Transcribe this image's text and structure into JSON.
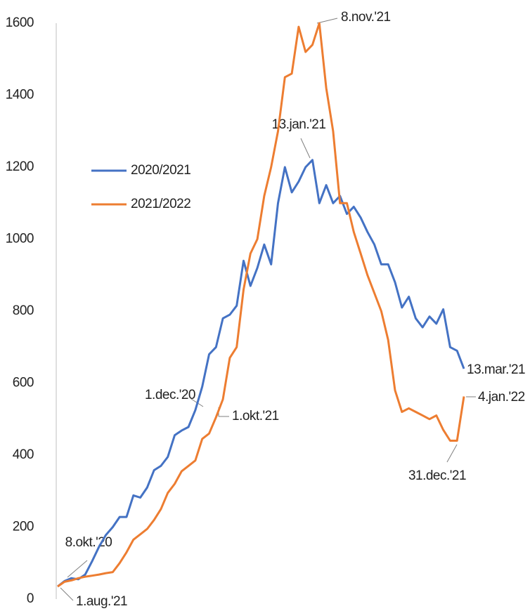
{
  "chart_data": {
    "type": "line",
    "ylim": [
      0,
      1600
    ],
    "yticks": [
      0,
      200,
      400,
      600,
      800,
      1000,
      1200,
      1400,
      1600
    ],
    "grid": false,
    "legend": "left",
    "series": [
      {
        "name": "2020/2021",
        "color": "#4472c4",
        "values": [
          35,
          50,
          58,
          55,
          68,
          105,
          145,
          178,
          200,
          228,
          228,
          288,
          282,
          310,
          358,
          370,
          395,
          455,
          468,
          478,
          525,
          590,
          680,
          700,
          780,
          790,
          815,
          940,
          870,
          920,
          985,
          930,
          1100,
          1200,
          1130,
          1160,
          1200,
          1220,
          1100,
          1150,
          1100,
          1120,
          1070,
          1090,
          1060,
          1020,
          985,
          930,
          930,
          880,
          810,
          840,
          780,
          755,
          785,
          765,
          805,
          700,
          690,
          640
        ]
      },
      {
        "name": "2021/2022",
        "color": "#ed7d31",
        "values": [
          35,
          48,
          52,
          58,
          62,
          65,
          68,
          72,
          75,
          100,
          130,
          165,
          180,
          195,
          220,
          250,
          295,
          320,
          355,
          370,
          385,
          445,
          460,
          505,
          555,
          670,
          700,
          860,
          960,
          1000,
          1120,
          1200,
          1300,
          1450,
          1460,
          1590,
          1520,
          1540,
          1600,
          1420,
          1300,
          1100,
          1100,
          1020,
          960,
          900,
          850,
          800,
          720,
          580,
          520,
          530,
          520,
          510,
          500,
          510,
          470,
          440,
          440,
          563
        ]
      }
    ],
    "annotations": [
      "8.nov.'21",
      "13.jan.'21",
      "1.dec.'20",
      "1.okt.'21",
      "13.mar.'21",
      "4.jan.'22",
      "31.dec.'21",
      "8.okt.'20",
      "1.aug.'21"
    ]
  }
}
